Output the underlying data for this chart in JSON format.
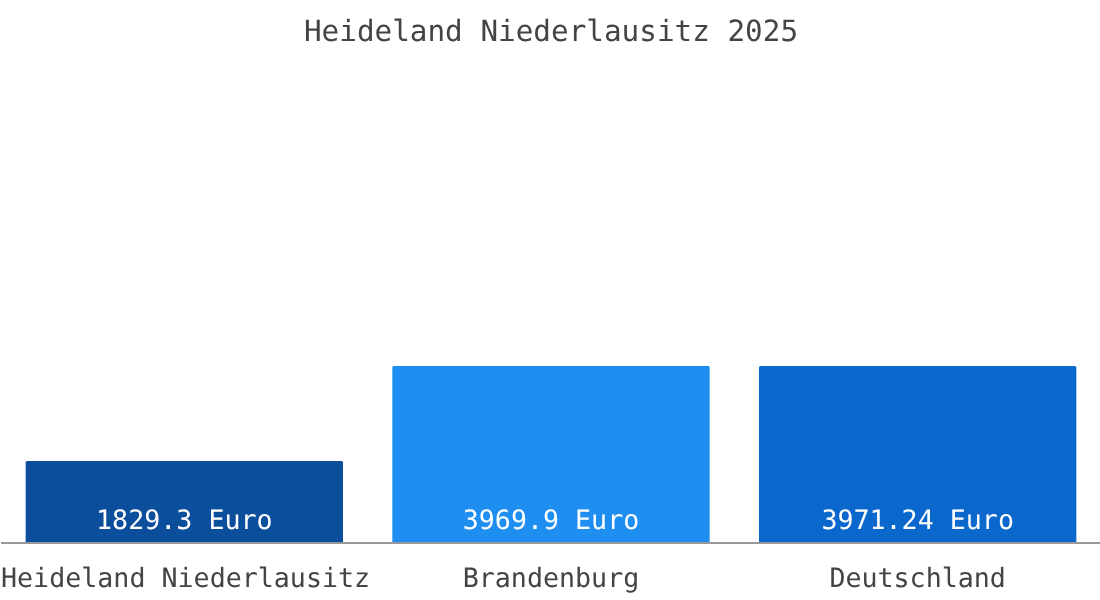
{
  "chart_data": {
    "type": "bar",
    "title": "Heideland Niederlausitz 2025",
    "categories": [
      "Heideland Niederlausitz",
      "Brandenburg",
      "Deutschland"
    ],
    "values": [
      1829.3,
      3969.9,
      3971.24
    ],
    "colors": [
      "#0b4f9c",
      "#1e8ef0",
      "#0a68cc"
    ],
    "value_labels": [
      "1829.3 Euro",
      "3969.9 Euro",
      "3971.24 Euro"
    ],
    "grid": false
  }
}
